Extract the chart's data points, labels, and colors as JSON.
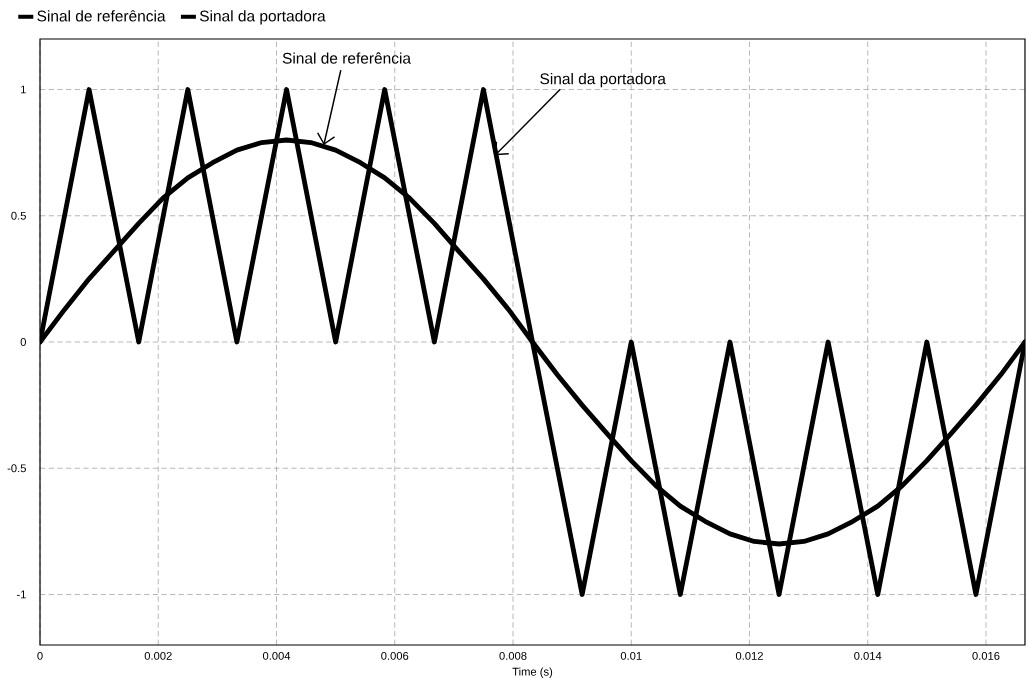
{
  "chart_data": {
    "type": "line",
    "xlabel": "Time (s)",
    "series": [
      {
        "name": "Sinal de referência",
        "color": "#000000",
        "x": [
          0,
          0.00042,
          0.00083,
          0.00125,
          0.00167,
          0.00208,
          0.0025,
          0.00292,
          0.00333,
          0.00375,
          0.00417,
          0.00458,
          0.005,
          0.00542,
          0.00583,
          0.00625,
          0.00667,
          0.00708,
          0.0075,
          0.00792,
          0.00833,
          0.00875,
          0.00917,
          0.00958,
          0.01,
          0.01042,
          0.01083,
          0.01125,
          0.01167,
          0.01208,
          0.0125,
          0.01292,
          0.01333,
          0.01375,
          0.01417,
          0.01458,
          0.015,
          0.01542,
          0.01583,
          0.01625,
          0.01666
        ],
        "values": [
          0,
          0.13,
          0.25,
          0.36,
          0.47,
          0.57,
          0.65,
          0.71,
          0.76,
          0.79,
          0.8,
          0.79,
          0.76,
          0.71,
          0.65,
          0.57,
          0.47,
          0.36,
          0.25,
          0.13,
          0,
          -0.13,
          -0.25,
          -0.36,
          -0.47,
          -0.57,
          -0.65,
          -0.71,
          -0.76,
          -0.79,
          -0.8,
          -0.79,
          -0.76,
          -0.71,
          -0.65,
          -0.57,
          -0.47,
          -0.36,
          -0.25,
          -0.13,
          0
        ]
      },
      {
        "name": "Sinal da portadora",
        "color": "#000000",
        "x": [
          0,
          0.00083,
          0.00167,
          0.0025,
          0.00333,
          0.00417,
          0.005,
          0.00583,
          0.00667,
          0.0075,
          0.00833,
          0.00917,
          0.01,
          0.01083,
          0.01167,
          0.0125,
          0.01333,
          0.01417,
          0.015,
          0.01583,
          0.01666
        ],
        "values": [
          0,
          1,
          0,
          1,
          0,
          1,
          0,
          1,
          0,
          1,
          0,
          -1,
          0,
          -1,
          0,
          -1,
          0,
          -1,
          0,
          -1,
          0
        ]
      }
    ],
    "xlim": [
      0,
      0.01666
    ],
    "ylim": [
      -1.2,
      1.2
    ],
    "xticks": [
      0,
      0.002,
      0.004,
      0.006,
      0.008,
      0.01,
      0.012,
      0.014,
      0.016
    ],
    "yticks": [
      -1,
      -0.5,
      0,
      0.5,
      1
    ],
    "grid": true,
    "legend": "top left",
    "annotations": [
      {
        "text": "Sinal de referência",
        "x": 0.0048,
        "y": 0.78
      },
      {
        "text": "Sinal da portadora",
        "x": 0.0077,
        "y": 0.74
      }
    ]
  }
}
